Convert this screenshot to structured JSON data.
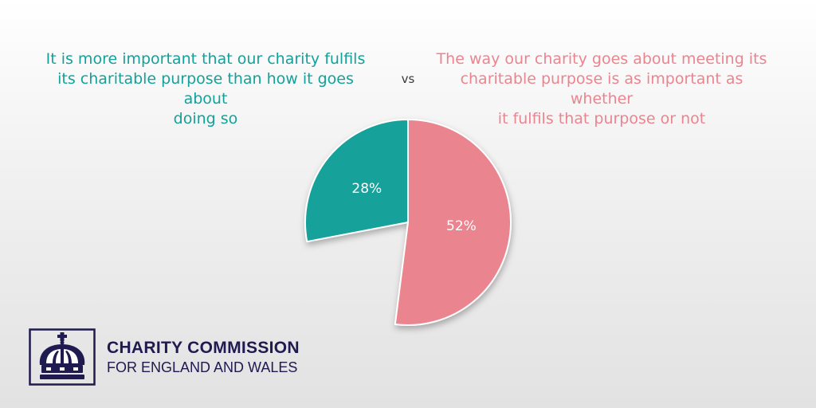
{
  "chart_data": {
    "type": "pie",
    "title": "",
    "slices": [
      {
        "label": "It is more important that our charity fulfils its charitable purpose than how it goes about doing so",
        "value": 28,
        "display": "28%",
        "color": "#14a19a"
      },
      {
        "label": "The way our charity goes about meeting its charitable purpose is as important as whether it fulfils that purpose or not",
        "value": 52,
        "display": "52%",
        "color": "#ea8590"
      }
    ],
    "legend": "top",
    "separator": "vs"
  },
  "statements": {
    "left_lines": [
      "It is more important that our charity fulfils",
      "its charitable purpose than how it goes about",
      "doing so"
    ],
    "right_lines": [
      "The way our charity goes about meeting its",
      "charitable purpose is as important as whether",
      "it fulfils that purpose or not"
    ],
    "left_color": "#14a19a",
    "right_color": "#ea8590",
    "vs": "vs"
  },
  "logo": {
    "line1": "CHARITY COMMISSION",
    "line2": "FOR ENGLAND AND WALES",
    "icon": "crown-icon",
    "color": "#1f1a4f"
  }
}
